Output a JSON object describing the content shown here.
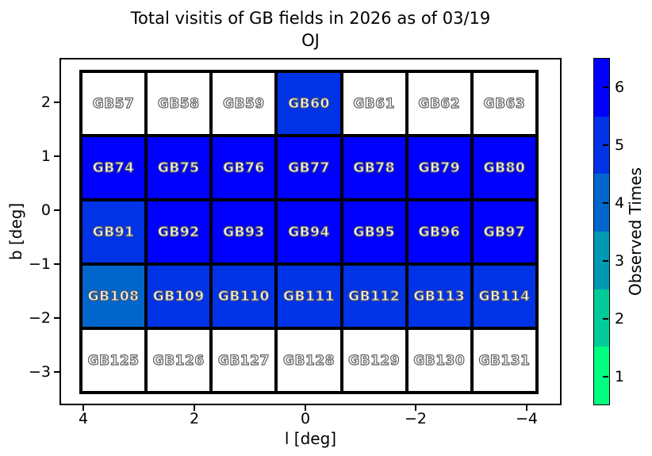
{
  "title": {
    "line1": "Total visitis of GB fields in 2026 as of 03/19",
    "line2": "OJ"
  },
  "x_axis": {
    "label": "l [deg]",
    "ticks": [
      "4",
      "2",
      "0",
      "−2",
      "−4"
    ]
  },
  "y_axis": {
    "label": "b [deg]",
    "ticks": [
      "2",
      "1",
      "0",
      "−1",
      "−2",
      "−3"
    ]
  },
  "colorbar": {
    "label": "Observed Times",
    "tick_labels_top_to_bottom": [
      "6",
      "5",
      "4",
      "3",
      "2",
      "1"
    ],
    "segment_colors_top_to_bottom": [
      "#0000FF",
      "#0033E6",
      "#0066CC",
      "#0099B3",
      "#00CC99",
      "#00FF80"
    ]
  },
  "value_colors": {
    "0": "#FFFFFF",
    "1": "#00FF80",
    "2": "#00CC99",
    "3": "#0099B3",
    "4": "#0066CC",
    "5": "#0033E6",
    "6": "#0000FF"
  },
  "grid": {
    "rows": [
      [
        {
          "label": "GB57",
          "visits": 0
        },
        {
          "label": "GB58",
          "visits": 0
        },
        {
          "label": "GB59",
          "visits": 0
        },
        {
          "label": "GB60",
          "visits": 5
        },
        {
          "label": "GB61",
          "visits": 0
        },
        {
          "label": "GB62",
          "visits": 0
        },
        {
          "label": "GB63",
          "visits": 0
        }
      ],
      [
        {
          "label": "GB74",
          "visits": 6
        },
        {
          "label": "GB75",
          "visits": 6
        },
        {
          "label": "GB76",
          "visits": 6
        },
        {
          "label": "GB77",
          "visits": 6
        },
        {
          "label": "GB78",
          "visits": 6
        },
        {
          "label": "GB79",
          "visits": 6
        },
        {
          "label": "GB80",
          "visits": 6
        }
      ],
      [
        {
          "label": "GB91",
          "visits": 5
        },
        {
          "label": "GB92",
          "visits": 6
        },
        {
          "label": "GB93",
          "visits": 6
        },
        {
          "label": "GB94",
          "visits": 6
        },
        {
          "label": "GB95",
          "visits": 6
        },
        {
          "label": "GB96",
          "visits": 6
        },
        {
          "label": "GB97",
          "visits": 6
        }
      ],
      [
        {
          "label": "GB108",
          "visits": 4
        },
        {
          "label": "GB109",
          "visits": 5
        },
        {
          "label": "GB110",
          "visits": 5
        },
        {
          "label": "GB111",
          "visits": 5
        },
        {
          "label": "GB112",
          "visits": 5
        },
        {
          "label": "GB113",
          "visits": 5
        },
        {
          "label": "GB114",
          "visits": 5
        }
      ],
      [
        {
          "label": "GB125",
          "visits": 0
        },
        {
          "label": "GB126",
          "visits": 0
        },
        {
          "label": "GB127",
          "visits": 0
        },
        {
          "label": "GB128",
          "visits": 0
        },
        {
          "label": "GB129",
          "visits": 0
        },
        {
          "label": "GB130",
          "visits": 0
        },
        {
          "label": "GB131",
          "visits": 0
        }
      ]
    ]
  },
  "chart_data": {
    "type": "heatmap",
    "title": "Total visitis of GB fields in 2026 as of 03/19\nOJ",
    "xlabel": "l [deg]",
    "ylabel": "b [deg]",
    "x_ticks": [
      4,
      2,
      0,
      -2,
      -4
    ],
    "y_ticks": [
      2,
      1,
      0,
      -1,
      -2,
      -3
    ],
    "x_axis_inverted": true,
    "colorbar_label": "Observed Times",
    "colorbar_ticks": [
      1,
      2,
      3,
      4,
      5,
      6
    ],
    "colorbar_range": [
      0.5,
      6.5
    ],
    "colormap": "winter_r discrete 6 bins",
    "colormap_bin_colors": {
      "1": "#00FF80",
      "2": "#00CC99",
      "3": "#0099B3",
      "4": "#0066CC",
      "5": "#0033E6",
      "6": "#0000FF"
    },
    "unobserved_color": "#FFFFFF",
    "l_centers_approx": [
      3.6,
      2.4,
      1.2,
      0,
      -1.2,
      -2.4,
      -3.6
    ],
    "b_centers_approx": [
      2.0,
      0.8,
      -0.4,
      -1.6,
      -2.8
    ],
    "rows": [
      {
        "b_center": 2.0,
        "fields": [
          "GB57",
          "GB58",
          "GB59",
          "GB60",
          "GB61",
          "GB62",
          "GB63"
        ],
        "visits": [
          0,
          0,
          0,
          5,
          0,
          0,
          0
        ]
      },
      {
        "b_center": 0.8,
        "fields": [
          "GB74",
          "GB75",
          "GB76",
          "GB77",
          "GB78",
          "GB79",
          "GB80"
        ],
        "visits": [
          6,
          6,
          6,
          6,
          6,
          6,
          6
        ]
      },
      {
        "b_center": -0.4,
        "fields": [
          "GB91",
          "GB92",
          "GB93",
          "GB94",
          "GB95",
          "GB96",
          "GB97"
        ],
        "visits": [
          5,
          6,
          6,
          6,
          6,
          6,
          6
        ]
      },
      {
        "b_center": -1.6,
        "fields": [
          "GB108",
          "GB109",
          "GB110",
          "GB111",
          "GB112",
          "GB113",
          "GB114"
        ],
        "visits": [
          4,
          5,
          5,
          5,
          5,
          5,
          5
        ]
      },
      {
        "b_center": -2.8,
        "fields": [
          "GB125",
          "GB126",
          "GB127",
          "GB128",
          "GB129",
          "GB130",
          "GB131"
        ],
        "visits": [
          0,
          0,
          0,
          0,
          0,
          0,
          0
        ]
      }
    ]
  }
}
